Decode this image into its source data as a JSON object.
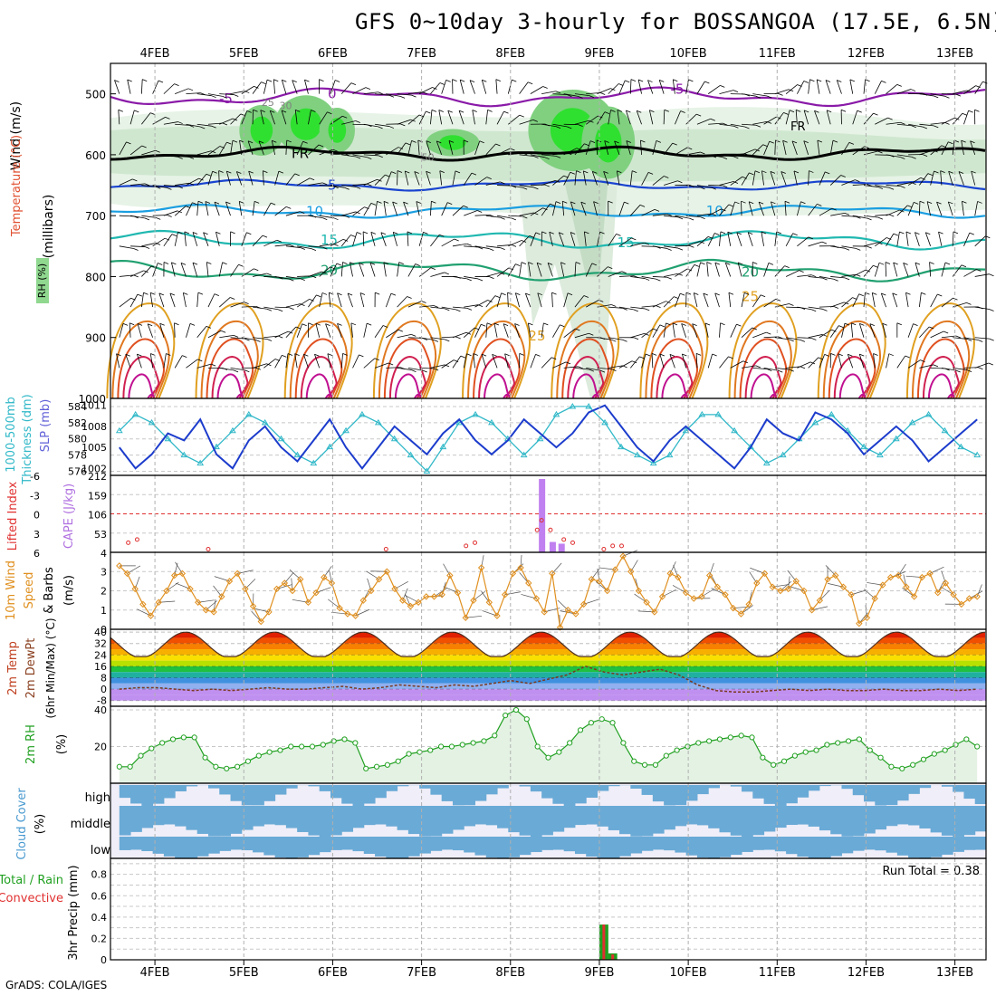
{
  "title": "GFS 0~10day 3-hourly for BOSSANGOA (17.5E, 6.5N)",
  "footer": "GrADS: COLA/IGES",
  "dates": [
    "4FEB",
    "5FEB",
    "6FEB",
    "7FEB",
    "8FEB",
    "9FEB",
    "10FEB",
    "11FEB",
    "12FEB",
    "13FEB"
  ],
  "colors": {
    "temp_contour": "#a020a0",
    "freezing": "#000000",
    "rh_fill": "#90d890",
    "cape": "#c080f0",
    "lifted": "#e03030",
    "wind": "#e09020",
    "rh2m": "#20a020",
    "cloud": "#6aaad6",
    "precip": "#20a020",
    "conv": "#e03030",
    "slp": "#1c3ccc",
    "thick": "#30b8c8"
  },
  "chart_data": [
    {
      "type": "heatmap",
      "title": "Upper air (temperature contours, RH shading, wind barbs)",
      "ylabel": "(millibars)",
      "side_labels": [
        "Wind (m/s)",
        "Temperature (°C)",
        "RH (%)"
      ],
      "y_ticks": [
        "500",
        "600",
        "700",
        "800",
        "900",
        "1000"
      ],
      "ylim": [
        450,
        1000
      ],
      "temp_contours": [
        {
          "label": "-5",
          "pressure": 508
        },
        {
          "label": "0",
          "pressure": 500
        },
        {
          "label": "FR",
          "pressure": 598
        },
        {
          "label": "5",
          "pressure": 650
        },
        {
          "label": "10",
          "pressure": 693
        },
        {
          "label": "15",
          "pressure": 740
        },
        {
          "label": "20",
          "pressure": 790
        }
      ],
      "rh_labels": [
        "30",
        "50",
        "25"
      ]
    },
    {
      "type": "line",
      "side_labels": [
        "1000-500mb",
        "Thickness (dm)",
        "SLP (mb)"
      ],
      "left_ticks": [
        "584",
        "582",
        "580",
        "578",
        "576"
      ],
      "right_ticks": [
        "1011",
        "1008",
        "1005",
        "1002"
      ],
      "series": [
        {
          "name": "SLP (mb)",
          "values": [
            1005,
            1002,
            1004,
            1007,
            1006,
            1009,
            1004,
            1002,
            1006,
            1008,
            1005,
            1003,
            1006,
            1009,
            1005,
            1002,
            1005,
            1008,
            1006,
            1004,
            1007,
            1009,
            1006,
            1004,
            1006,
            1009,
            1007,
            1005,
            1007,
            1010,
            1011,
            1008,
            1005,
            1003,
            1006,
            1008,
            1006,
            1004,
            1002,
            1005,
            1009,
            1007,
            1006,
            1010,
            1009,
            1007,
            1004,
            1006,
            1008,
            1006,
            1003,
            1005,
            1007,
            1009
          ]
        },
        {
          "name": "1000-500mb Thickness (dm)",
          "values": [
            581,
            583,
            582,
            580,
            578,
            577,
            579,
            581,
            583,
            582,
            580,
            578,
            577,
            579,
            581,
            583,
            582,
            580,
            578,
            576,
            579,
            582,
            583,
            582,
            580,
            578,
            580,
            583,
            584,
            584,
            582,
            579,
            578,
            577,
            578,
            581,
            583,
            583,
            581,
            579,
            577,
            578,
            580,
            582,
            583,
            581,
            579,
            578,
            580,
            582,
            583,
            581,
            579,
            578
          ]
        }
      ]
    },
    {
      "type": "bar",
      "side_labels": [
        "Lifted Index",
        "CAPE (J/kg)"
      ],
      "left_ticks": [
        "-6",
        "-3",
        "0",
        "3",
        "6"
      ],
      "right_ticks": [
        "212",
        "159",
        "106",
        "53",
        "4"
      ],
      "series": [
        {
          "name": "CAPE (J/kg)",
          "values": [
            {
              "x": 8.35,
              "v": 212
            },
            {
              "x": 8.47,
              "v": 30
            },
            {
              "x": 8.57,
              "v": 25
            }
          ]
        },
        {
          "name": "Lifted Index",
          "values": [
            {
              "x": 3.7,
              "v": 4.5
            },
            {
              "x": 3.8,
              "v": 4.0
            },
            {
              "x": 4.6,
              "v": 5.5
            },
            {
              "x": 6.6,
              "v": 5.5
            },
            {
              "x": 7.5,
              "v": 5.0
            },
            {
              "x": 7.6,
              "v": 4.5
            },
            {
              "x": 8.3,
              "v": 2.5
            },
            {
              "x": 8.35,
              "v": 1.0
            },
            {
              "x": 8.45,
              "v": 2.5
            },
            {
              "x": 8.6,
              "v": 4.0
            },
            {
              "x": 8.7,
              "v": 4.5
            },
            {
              "x": 9.05,
              "v": 5.5
            },
            {
              "x": 9.15,
              "v": 5.0
            },
            {
              "x": 9.25,
              "v": 5.0
            }
          ]
        }
      ]
    },
    {
      "type": "line",
      "side_labels": [
        "10m Wind",
        "Speed",
        "& Barbs",
        "(m/s)"
      ],
      "left_ticks": [
        "3",
        "2",
        "1",
        "0"
      ],
      "series": [
        {
          "name": "10m Wind Speed (m/s)",
          "values": [
            3.3,
            2.9,
            2.1,
            1.3,
            0.7,
            1.4,
            2.0,
            2.8,
            2.9,
            2.1,
            1.4,
            1.0,
            0.9,
            1.7,
            2.5,
            2.9,
            2.1,
            1.2,
            0.4,
            0.9,
            2.1,
            2.4,
            2.0,
            2.6,
            1.4,
            1.9,
            2.7,
            2.4,
            1.1,
            0.8,
            0.7,
            1.5,
            2.0,
            2.6,
            3.0,
            2.1,
            1.5,
            1.2,
            1.4,
            1.7,
            1.7,
            1.8,
            2.8,
            1.9,
            0.6,
            1.5,
            3.2,
            1.4,
            0.7,
            1.8,
            2.9,
            3.2,
            2.4,
            1.6,
            0.9,
            2.9,
            0.1,
            1.0,
            0.8,
            1.3,
            2.6,
            2.5,
            2.0,
            3.1,
            3.8,
            3.0,
            2.0,
            1.4,
            0.9,
            1.7,
            2.9,
            2.7,
            1.9,
            1.6,
            1.7,
            2.8,
            2.2,
            1.8,
            1.1,
            0.8,
            1.3,
            2.4,
            2.9,
            2.2,
            2.0,
            2.1,
            2.5,
            2.0,
            1.0,
            1.5,
            2.6,
            2.8,
            2.2,
            1.8,
            0.3,
            0.6,
            1.6,
            2.3,
            2.7,
            2.8,
            2.2,
            1.7,
            2.7,
            2.9,
            1.9,
            2.4,
            1.8,
            1.3,
            1.6,
            1.7
          ]
        }
      ]
    },
    {
      "type": "area",
      "side_labels": [
        "2m Temp",
        "2m DewPt",
        "(6hr Min/Max) (°C)"
      ],
      "left_ticks": [
        "40",
        "32",
        "24",
        "16",
        "8",
        "0",
        "-8"
      ],
      "series": [
        {
          "name": "2m Temp (°C)",
          "day_min": 22,
          "day_max": 40
        },
        {
          "name": "2m DewPt (°C)",
          "values": [
            0,
            1,
            1,
            0,
            -1,
            0,
            -1,
            0,
            1,
            0,
            0,
            1,
            2,
            0,
            1,
            3,
            2,
            1,
            3,
            2,
            4,
            6,
            4,
            7,
            10,
            16,
            12,
            10,
            12,
            14,
            10,
            3,
            -1,
            -2,
            -2,
            -1,
            0,
            -1,
            0,
            -1,
            -1,
            0,
            -1,
            -1,
            0,
            -1,
            0
          ]
        }
      ]
    },
    {
      "type": "area",
      "side_labels": [
        "2m RH",
        "(%)"
      ],
      "left_ticks": [
        "40",
        "20"
      ],
      "series": [
        {
          "name": "2m RH (%)",
          "values": [
            9,
            9,
            15,
            19,
            22,
            24,
            25,
            25,
            14,
            9,
            8,
            9,
            12,
            15,
            17,
            18,
            20,
            20,
            20,
            21,
            23,
            24,
            22,
            8,
            9,
            10,
            12,
            16,
            17,
            18,
            20,
            20,
            21,
            22,
            23,
            26,
            37,
            40,
            35,
            20,
            14,
            17,
            22,
            29,
            33,
            35,
            33,
            22,
            12,
            10,
            10,
            15,
            18,
            20,
            22,
            23,
            24,
            25,
            26,
            25,
            14,
            10,
            12,
            15,
            17,
            18,
            21,
            22,
            23,
            24,
            18,
            14,
            9,
            8,
            10,
            13,
            16,
            18,
            21,
            24,
            20
          ]
        }
      ]
    },
    {
      "type": "heatmap",
      "side_labels": [
        "Cloud Cover",
        "(%)"
      ],
      "level_labels": [
        "high",
        "middle",
        "low"
      ]
    },
    {
      "type": "bar",
      "side_labels": [
        "Total / Rain",
        "Convective",
        "3hr Precip (mm)"
      ],
      "left_ticks": [
        "0.8",
        "0.6",
        "0.4",
        "0.2",
        "0"
      ],
      "run_total": "Run Total = 0.38",
      "ylim": [
        0,
        0.95
      ],
      "series": [
        {
          "name": "Total / Rain",
          "values": [
            {
              "x": 9.05,
              "v": 0.33
            },
            {
              "x": 9.15,
              "v": 0.06
            }
          ]
        },
        {
          "name": "Convective",
          "values": [
            {
              "x": 9.05,
              "v": 0.33
            },
            {
              "x": 9.15,
              "v": 0.05
            }
          ]
        }
      ]
    }
  ]
}
